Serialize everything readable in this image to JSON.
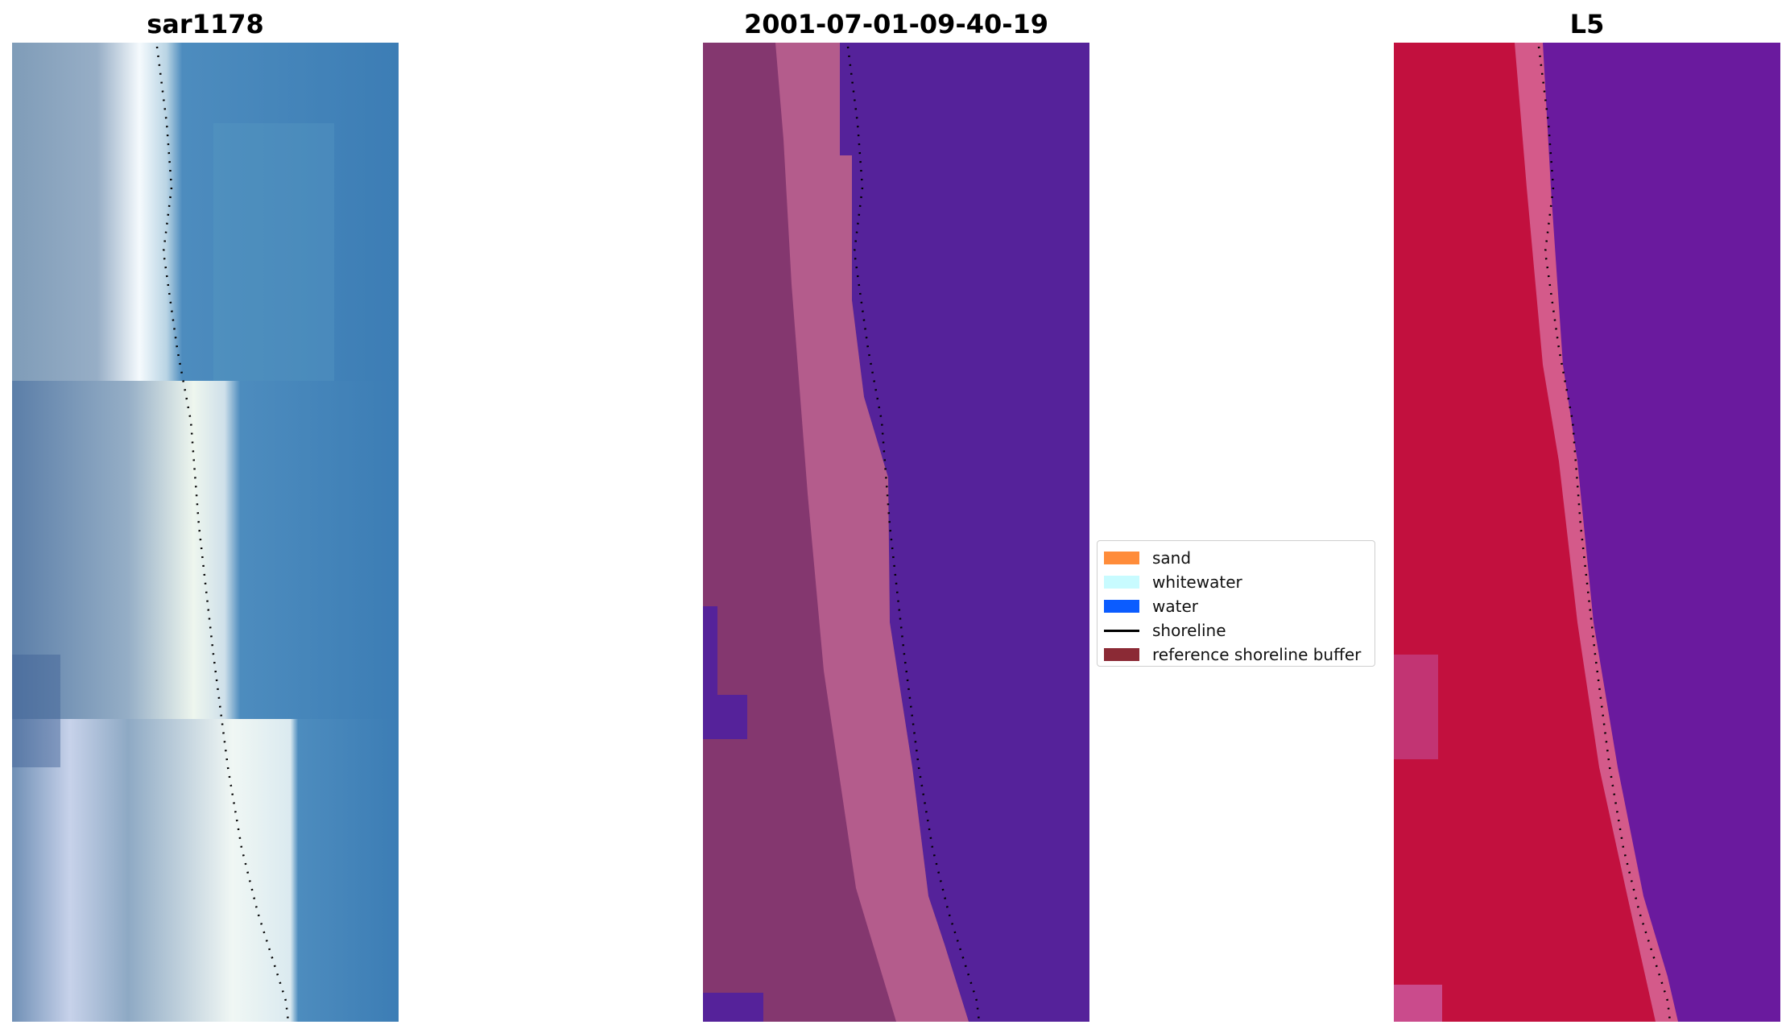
{
  "panels": {
    "left": {
      "title": "sar1178"
    },
    "center": {
      "title": "2001-07-01-09-40-19"
    },
    "right": {
      "title": "L5"
    }
  },
  "legend": {
    "items": [
      {
        "label": "sand",
        "color": "#ff8c3a",
        "kind": "patch"
      },
      {
        "label": "whitewater",
        "color": "#c8fbff",
        "kind": "patch"
      },
      {
        "label": "water",
        "color": "#0b5cff",
        "kind": "patch"
      },
      {
        "label": "shoreline",
        "color": "#000000",
        "kind": "line"
      },
      {
        "label": "reference shoreline buffer",
        "color": "#8b2a35",
        "kind": "patch"
      }
    ]
  },
  "colors": {
    "rgb_sky": "#3f82b8",
    "rgb_land": "#8aa6c0",
    "rgb_white": "#f2f8fb",
    "class_water": "#55229a",
    "class_land": "#84376f",
    "class_sand": "#b45c8c",
    "mndwi_water": "#6a1a9e",
    "mndwi_land": "#c2103e",
    "mndwi_sand": "#d45a8a"
  }
}
